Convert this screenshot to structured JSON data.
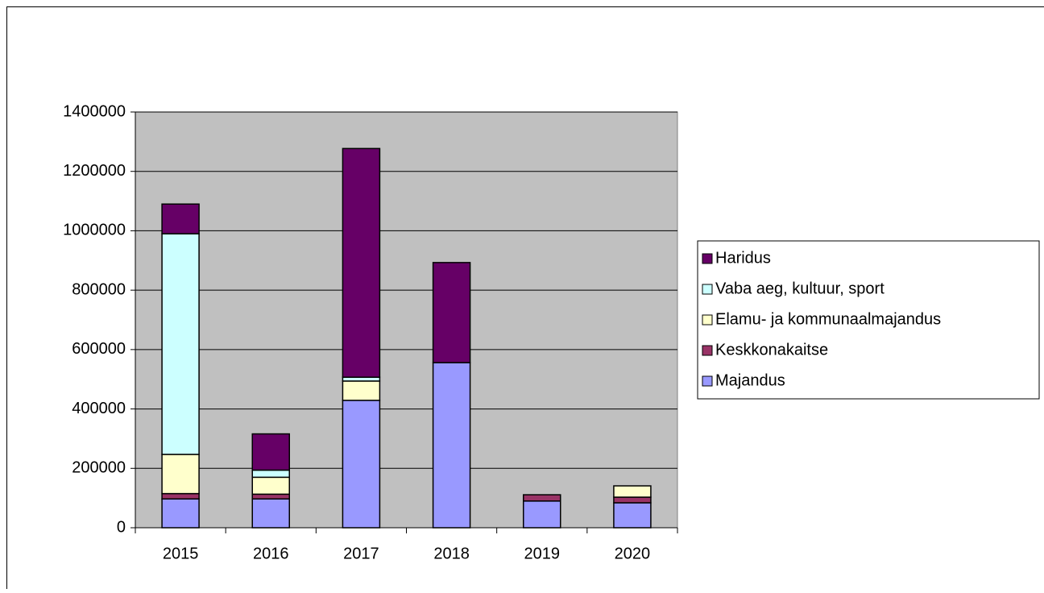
{
  "chart_data": {
    "type": "stacked_bar",
    "categories": [
      "2015",
      "2016",
      "2017",
      "2018",
      "2019",
      "2020"
    ],
    "series": [
      {
        "name": "Majandus",
        "color": "#9999ff",
        "values": [
          97000,
          97000,
          429000,
          556000,
          90000,
          84000
        ]
      },
      {
        "name": "Keskkonakaitse",
        "color": "#993366",
        "values": [
          18000,
          16000,
          0,
          0,
          21000,
          19000
        ]
      },
      {
        "name": "Elamu- ja kommunaalmajandus",
        "color": "#ffffcc",
        "values": [
          132000,
          57000,
          65000,
          0,
          0,
          38000
        ]
      },
      {
        "name": "Vaba aeg, kultuur, sport",
        "color": "#ccffff",
        "values": [
          743000,
          24000,
          13000,
          0,
          0,
          0
        ]
      },
      {
        "name": "Haridus",
        "color": "#660066",
        "values": [
          100000,
          122000,
          770000,
          337000,
          0,
          0
        ]
      }
    ],
    "ylim": [
      0,
      1400000
    ],
    "yticks": [
      0,
      200000,
      400000,
      600000,
      800000,
      1000000,
      1200000,
      1400000
    ],
    "grid": true,
    "legend": "right",
    "plot_background": "#c0c0c0"
  }
}
